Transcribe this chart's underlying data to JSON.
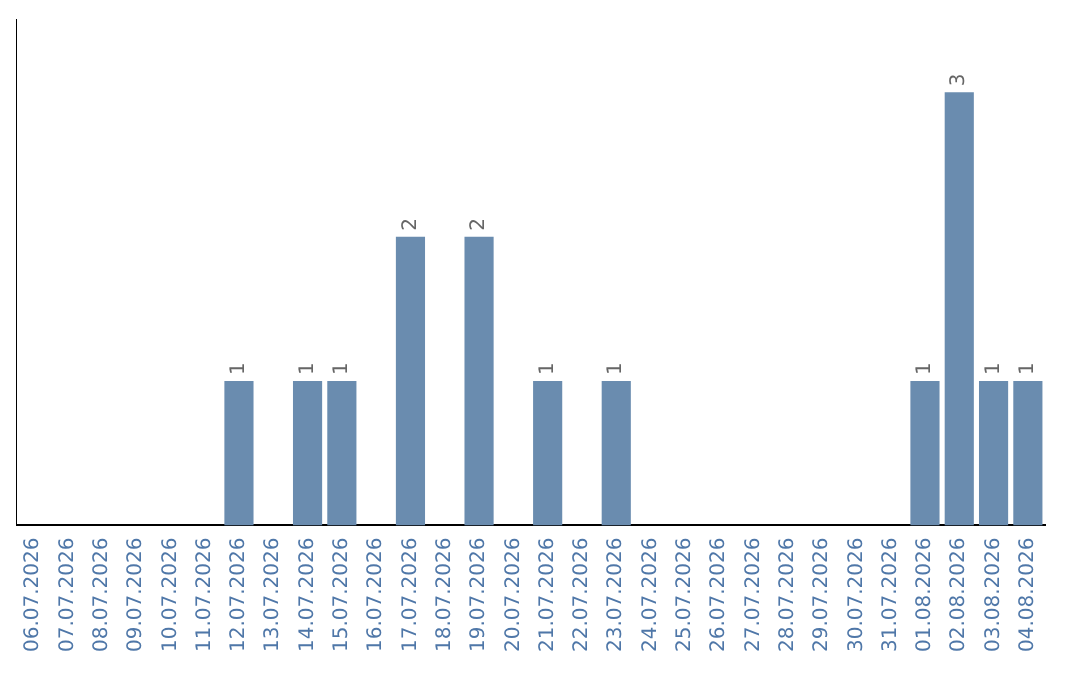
{
  "chart_data": {
    "type": "bar",
    "categories": [
      "06.07.2026",
      "07.07.2026",
      "08.07.2026",
      "09.07.2026",
      "10.07.2026",
      "11.07.2026",
      "12.07.2026",
      "13.07.2026",
      "14.07.2026",
      "15.07.2026",
      "16.07.2026",
      "17.07.2026",
      "18.07.2026",
      "19.07.2026",
      "20.07.2026",
      "21.07.2026",
      "22.07.2026",
      "23.07.2026",
      "24.07.2026",
      "25.07.2026",
      "26.07.2026",
      "27.07.2026",
      "28.07.2026",
      "29.07.2026",
      "30.07.2026",
      "31.07.2026",
      "01.08.2026",
      "02.08.2026",
      "03.08.2026",
      "04.08.2026"
    ],
    "values": [
      0,
      0,
      0,
      0,
      0,
      0,
      1,
      0,
      1,
      1,
      0,
      2,
      0,
      2,
      0,
      1,
      0,
      1,
      0,
      0,
      0,
      0,
      0,
      0,
      0,
      0,
      1,
      3,
      1,
      1
    ],
    "value_labels": [
      null,
      null,
      null,
      null,
      null,
      null,
      "1",
      null,
      "1",
      "1",
      null,
      "2",
      null,
      "2",
      null,
      "1",
      null,
      "1",
      null,
      null,
      null,
      null,
      null,
      null,
      null,
      null,
      "1",
      "3",
      "1",
      "1"
    ],
    "color": "#6a8caf",
    "tick_labels": "x",
    "grid": false,
    "legend": false
  }
}
